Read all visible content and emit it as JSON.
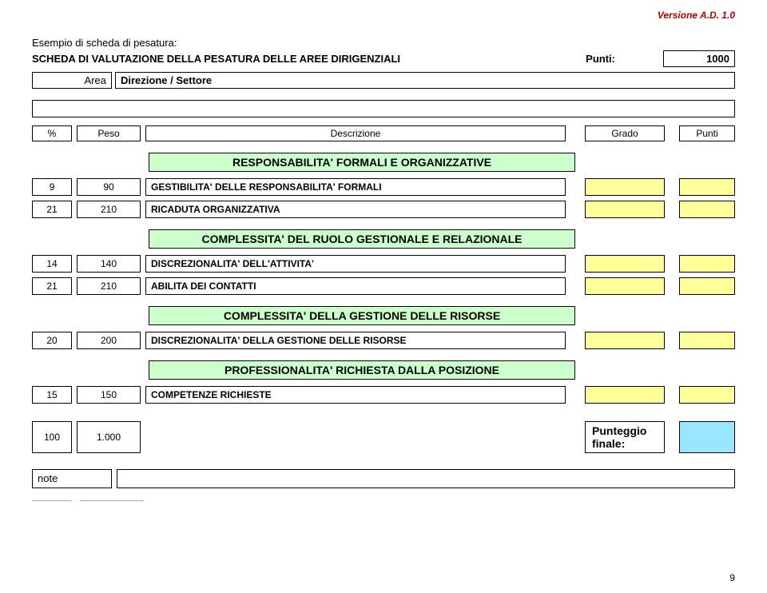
{
  "version": "Versione A.D. 1.0",
  "page_number": "9",
  "intro": "Esempio di scheda di pesatura:",
  "title": "SCHEDA DI VALUTAZIONE DELLA PESATURA DELLE AREE DIRIGENZIALI",
  "punti_label": "Punti:",
  "punti_value": "1000",
  "area_label": "Area",
  "area_value": "Direzione / Settore",
  "headers": {
    "pct": "%",
    "peso": "Peso",
    "desc": "Descrizione",
    "grado": "Grado",
    "punti": "Punti"
  },
  "sections": [
    {
      "title": "RESPONSABILITA' FORMALI E ORGANIZZATIVE",
      "rows": [
        {
          "pct": "9",
          "peso": "90",
          "desc": "GESTIBILITA' DELLE RESPONSABILITA' FORMALI"
        },
        {
          "pct": "21",
          "peso": "210",
          "desc": "RICADUTA ORGANIZZATIVA"
        }
      ]
    },
    {
      "title": "COMPLESSITA' DEL RUOLO GESTIONALE E RELAZIONALE",
      "rows": [
        {
          "pct": "14",
          "peso": "140",
          "desc": "DISCREZIONALITA' DELL'ATTIVITA'"
        },
        {
          "pct": "21",
          "peso": "210",
          "desc": "ABILITA DEI CONTATTI"
        }
      ]
    },
    {
      "title": "COMPLESSITA' DELLA GESTIONE DELLE RISORSE",
      "rows": [
        {
          "pct": "20",
          "peso": "200",
          "desc": "DISCREZIONALITA' DELLA GESTIONE DELLE RISORSE"
        }
      ]
    },
    {
      "title": "PROFESSIONALITA' RICHIESTA DALLA POSIZIONE",
      "rows": [
        {
          "pct": "15",
          "peso": "150",
          "desc": "COMPETENZE RICHIESTE"
        }
      ]
    }
  ],
  "totals": {
    "pct": "100",
    "peso": "1.000"
  },
  "final_label": "Punteggio finale:",
  "note_label": "note",
  "colors": {
    "section_bg": "#ccffcc",
    "input_bg": "#ffff99",
    "final_bg": "#99e6ff",
    "version_color": "#b50000"
  }
}
